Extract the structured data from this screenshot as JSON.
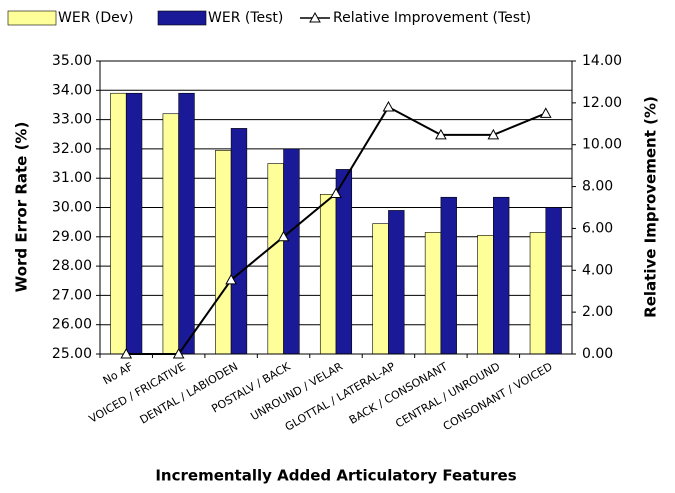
{
  "chart_data": {
    "type": "bar",
    "x_label": "Incrementally Added Articulatory Features",
    "y_label": "Word Error Rate (%)",
    "y2_label": "Relative Improvement (%)",
    "categories": [
      "No AF",
      "VOICED / FRICATIVE",
      "DENTAL / LABIODEN",
      "POSTALV / BACK",
      "UNROUND / VELAR",
      "GLOTTAL / LATERAL-AP",
      "BACK / CONSONANT",
      "CENTRAL / UNROUND",
      "CONSONANT / VOICED"
    ],
    "series": [
      {
        "name": "WER (Dev)",
        "color": "#ffff99",
        "type": "bar",
        "values": [
          33.9,
          33.2,
          31.95,
          31.5,
          30.45,
          29.45,
          29.15,
          29.05,
          29.15
        ]
      },
      {
        "name": "WER (Test)",
        "color": "#1a1a99",
        "type": "bar",
        "values": [
          33.9,
          33.9,
          32.7,
          32.0,
          31.3,
          29.9,
          30.35,
          30.35,
          30.0
        ]
      },
      {
        "name": "Relative Improvement (Test)",
        "color": "#000000",
        "type": "line",
        "axis": "y2",
        "values": [
          0,
          0,
          3.54,
          5.6,
          7.67,
          11.8,
          10.47,
          10.47,
          11.5
        ]
      }
    ],
    "ylim": [
      25,
      35
    ],
    "yticks": [
      {
        "value": 25,
        "label": "25.00"
      },
      {
        "value": 26,
        "label": "26.00"
      },
      {
        "value": 27,
        "label": "27.00"
      },
      {
        "value": 28,
        "label": "28.00"
      },
      {
        "value": 29,
        "label": "29.00"
      },
      {
        "value": 30,
        "label": "30.00"
      },
      {
        "value": 31,
        "label": "31.00"
      },
      {
        "value": 32,
        "label": "32.00"
      },
      {
        "value": 33,
        "label": "33.00"
      },
      {
        "value": 34,
        "label": "34.00"
      },
      {
        "value": 35,
        "label": "35.00"
      }
    ],
    "y2lim": [
      0,
      14
    ],
    "y2ticks": [
      {
        "value": 0,
        "label": "0.00"
      },
      {
        "value": 2,
        "label": "2.00"
      },
      {
        "value": 4,
        "label": "4.00"
      },
      {
        "value": 6,
        "label": "6.00"
      },
      {
        "value": 8,
        "label": "8.00"
      },
      {
        "value": 10,
        "label": "10.00"
      },
      {
        "value": 12,
        "label": "12.00"
      },
      {
        "value": 14,
        "label": "14.00"
      }
    ],
    "grid": true,
    "legend": "top"
  }
}
